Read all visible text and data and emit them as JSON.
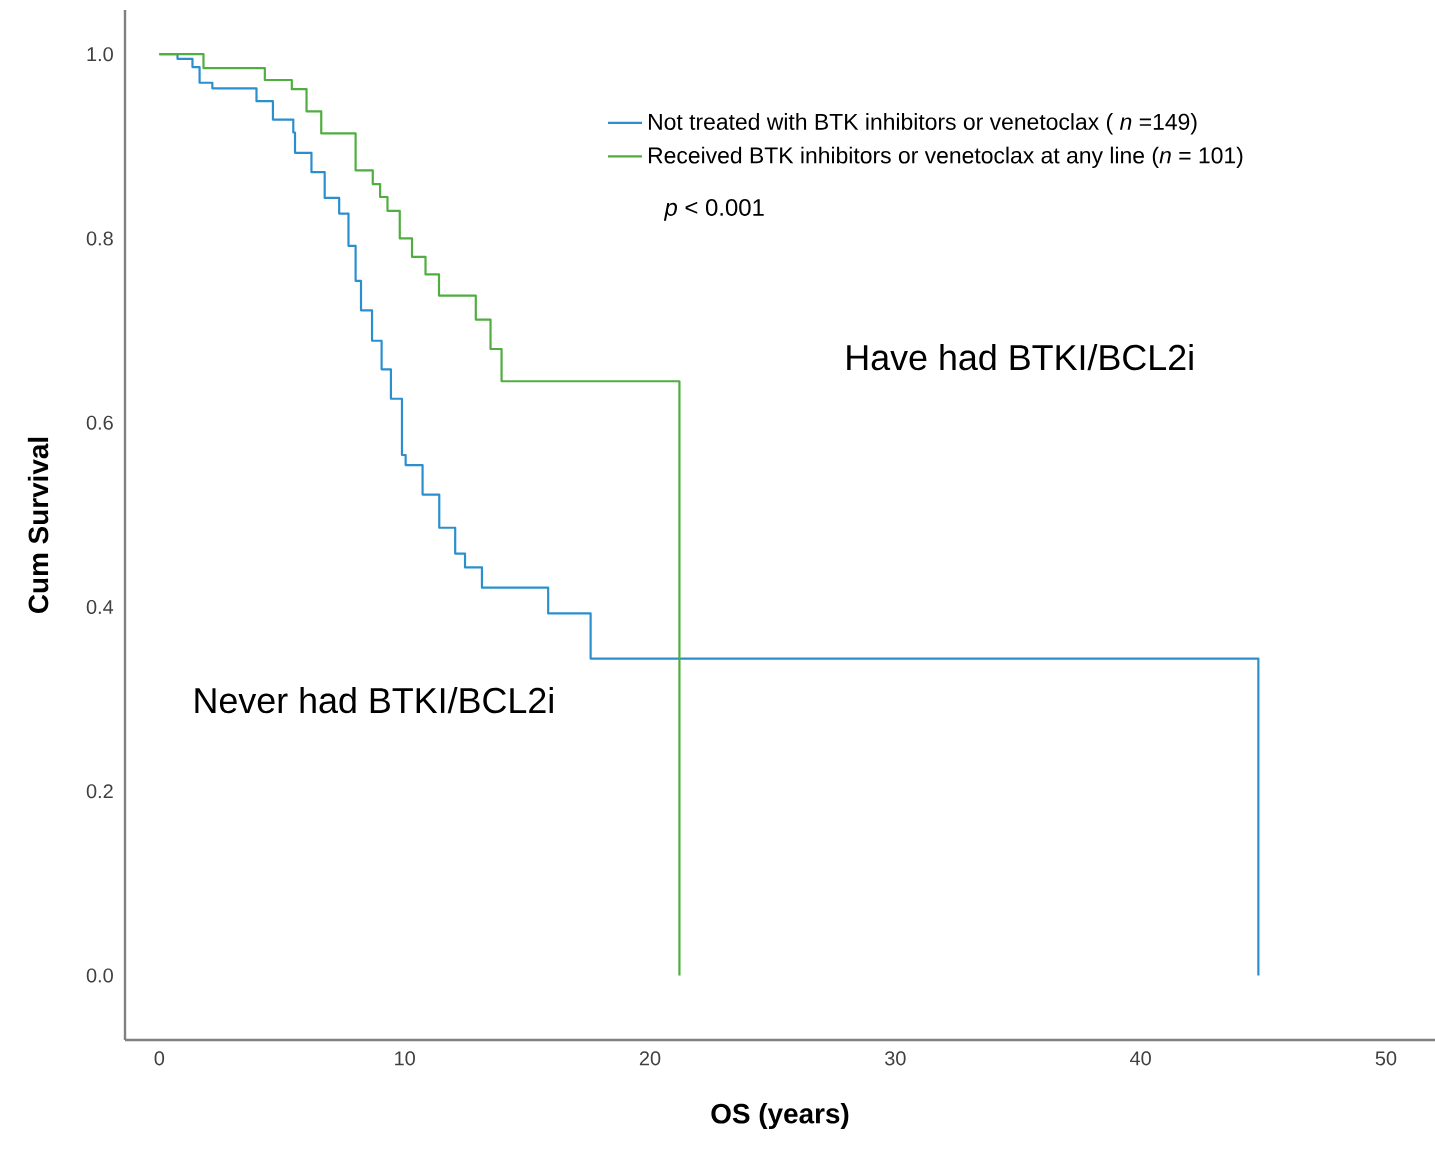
{
  "chart_data": {
    "type": "step",
    "xlabel": "OS (years)",
    "ylabel": "Cum Survival",
    "xlim": [
      -1.4,
      52
    ],
    "ylim": [
      -0.07,
      1.048
    ],
    "xticks": [
      0,
      10,
      20,
      30,
      40,
      50
    ],
    "yticks": [
      {
        "value": 0,
        "label": "0.0"
      },
      {
        "value": 0.2,
        "label": "0.2"
      },
      {
        "value": 0.4,
        "label": "0.4"
      },
      {
        "value": 0.6,
        "label": "0.6"
      },
      {
        "value": 0.8,
        "label": "0.8"
      },
      {
        "value": 1,
        "label": "1.0"
      }
    ],
    "legend": "top right",
    "annotations": [
      "*p* < 0.001",
      "Have had BTKI/BCL2i",
      "Never had BTKI/BCL2i"
    ],
    "series": [
      {
        "name": "Not treated with BTK inhibitors or venetoclax ( *n* =149)",
        "color": "#2a8fcc",
        "x": [
          0,
          0.74,
          1.35,
          1.64,
          2.16,
          3.96,
          4.63,
          5.46,
          5.53,
          6.2,
          6.74,
          7.33,
          7.71,
          8.0,
          8.22,
          8.67,
          9.06,
          9.44,
          9.89,
          10.04,
          10.73,
          11.41,
          12.06,
          12.46,
          13.15,
          15.85,
          17.58,
          44.8
        ],
        "values": [
          1.0,
          0.995,
          0.986,
          0.969,
          0.963,
          0.949,
          0.929,
          0.915,
          0.893,
          0.872,
          0.844,
          0.827,
          0.792,
          0.754,
          0.722,
          0.689,
          0.658,
          0.626,
          0.565,
          0.554,
          0.522,
          0.486,
          0.458,
          0.443,
          0.421,
          0.393,
          0.344,
          0
        ]
      },
      {
        "name": "Received BTK inhibitors or venetoclax at any line (*n* = 101)",
        "color": "#4fae3f",
        "x": [
          0,
          1.8,
          4.3,
          5.4,
          6.0,
          6.6,
          8.0,
          8.7,
          9.0,
          9.3,
          9.8,
          10.3,
          10.85,
          11.4,
          12.9,
          13.5,
          13.95,
          21.2
        ],
        "values": [
          1.0,
          0.985,
          0.972,
          0.962,
          0.938,
          0.914,
          0.874,
          0.859,
          0.845,
          0.83,
          0.8,
          0.78,
          0.761,
          0.738,
          0.712,
          0.68,
          0.645,
          0
        ]
      }
    ]
  }
}
